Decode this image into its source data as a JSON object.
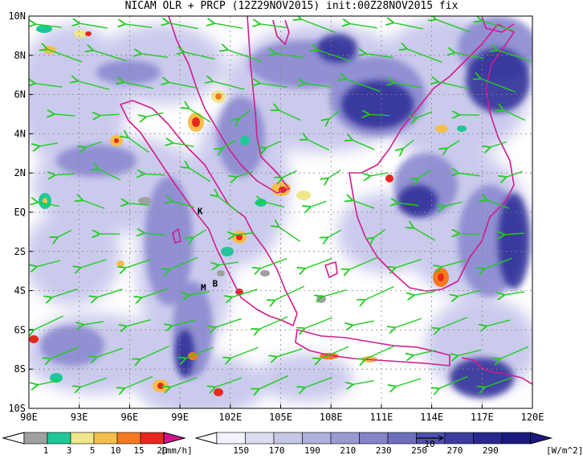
{
  "title": "NICAM OLR + PRCP (12Z29NOV2015) init:00Z28NOV2015 fix",
  "lat_labels": [
    "10N",
    "8N",
    "6N",
    "4N",
    "2N",
    "EQ",
    "2S",
    "4S",
    "6S",
    "8S",
    "10S"
  ],
  "lon_labels": [
    "90E",
    "93E",
    "96E",
    "99E",
    "102E",
    "105E",
    "108E",
    "111E",
    "114E",
    "117E",
    "120E"
  ],
  "extent": {
    "lon_min": 90,
    "lon_max": 120,
    "lat_min": -10,
    "lat_max": 10
  },
  "place_labels": [
    {
      "text": "K",
      "lon": 100.2,
      "lat": -0.1
    },
    {
      "text": "M",
      "lon": 100.4,
      "lat": -4.0
    },
    {
      "text": "B",
      "lon": 101.1,
      "lat": -3.8
    }
  ],
  "prcp_legend": {
    "ticks": [
      "1",
      "3",
      "5",
      "10",
      "15",
      "20"
    ],
    "unit": "[mm/h]",
    "colors": [
      "#a0a0a0",
      "#1ec896",
      "#f0e68c",
      "#f5be4a",
      "#f57a1e",
      "#e6281e",
      "#d2148c"
    ]
  },
  "olr_legend": {
    "ticks": [
      "150",
      "170",
      "190",
      "210",
      "230",
      "250",
      "270",
      "290"
    ],
    "unit": "[W/m^2]",
    "colors": [
      "#f2f2fa",
      "#dcdcf0",
      "#c6c6e6",
      "#b0b0dc",
      "#9a9ad2",
      "#8484c8",
      "#6e6ebe",
      "#5050b0",
      "#3c3ca0",
      "#282890",
      "#1a1a80"
    ]
  },
  "vector_ref_label": "10",
  "colors": {
    "coast": "#d21c8c",
    "wind": "#22cc22",
    "cloud_mid": "#8a8ad0",
    "cloud_deep": "#2a2a96"
  }
}
